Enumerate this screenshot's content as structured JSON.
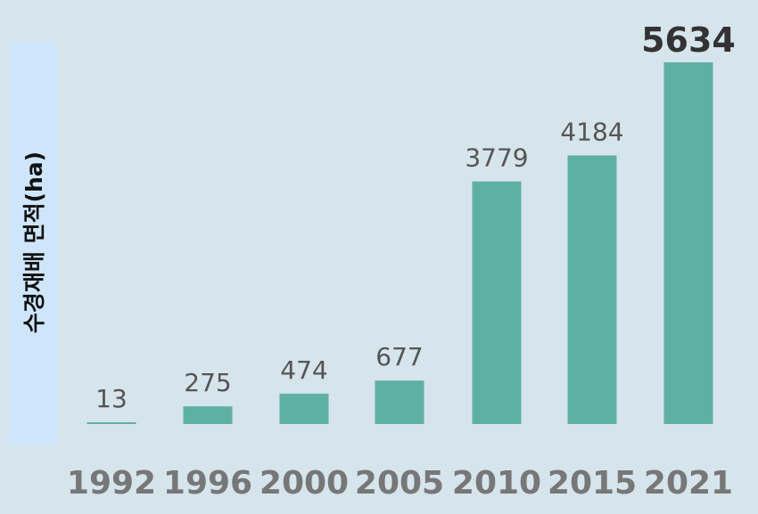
{
  "chart_data": {
    "type": "bar",
    "categories": [
      "1992",
      "1996",
      "2000",
      "2005",
      "2010",
      "2015",
      "2021"
    ],
    "values": [
      13,
      275,
      474,
      677,
      3779,
      4184,
      5634
    ],
    "data_labels": [
      "13",
      "275",
      "474",
      "677",
      "3779",
      "4184",
      "5634"
    ],
    "ylabel": "수경재배  면적(ha)",
    "xlabel": "",
    "title": "",
    "ylim": [
      0,
      5634
    ],
    "grid": false,
    "legend": "none",
    "bar_color": "#5fb0a4",
    "label_color": "#555555",
    "highlight_label_color": "#333333",
    "xtick_color": "#777777",
    "background": "#d6e4ec",
    "ylabel_box_color": "#cfe5fa"
  }
}
